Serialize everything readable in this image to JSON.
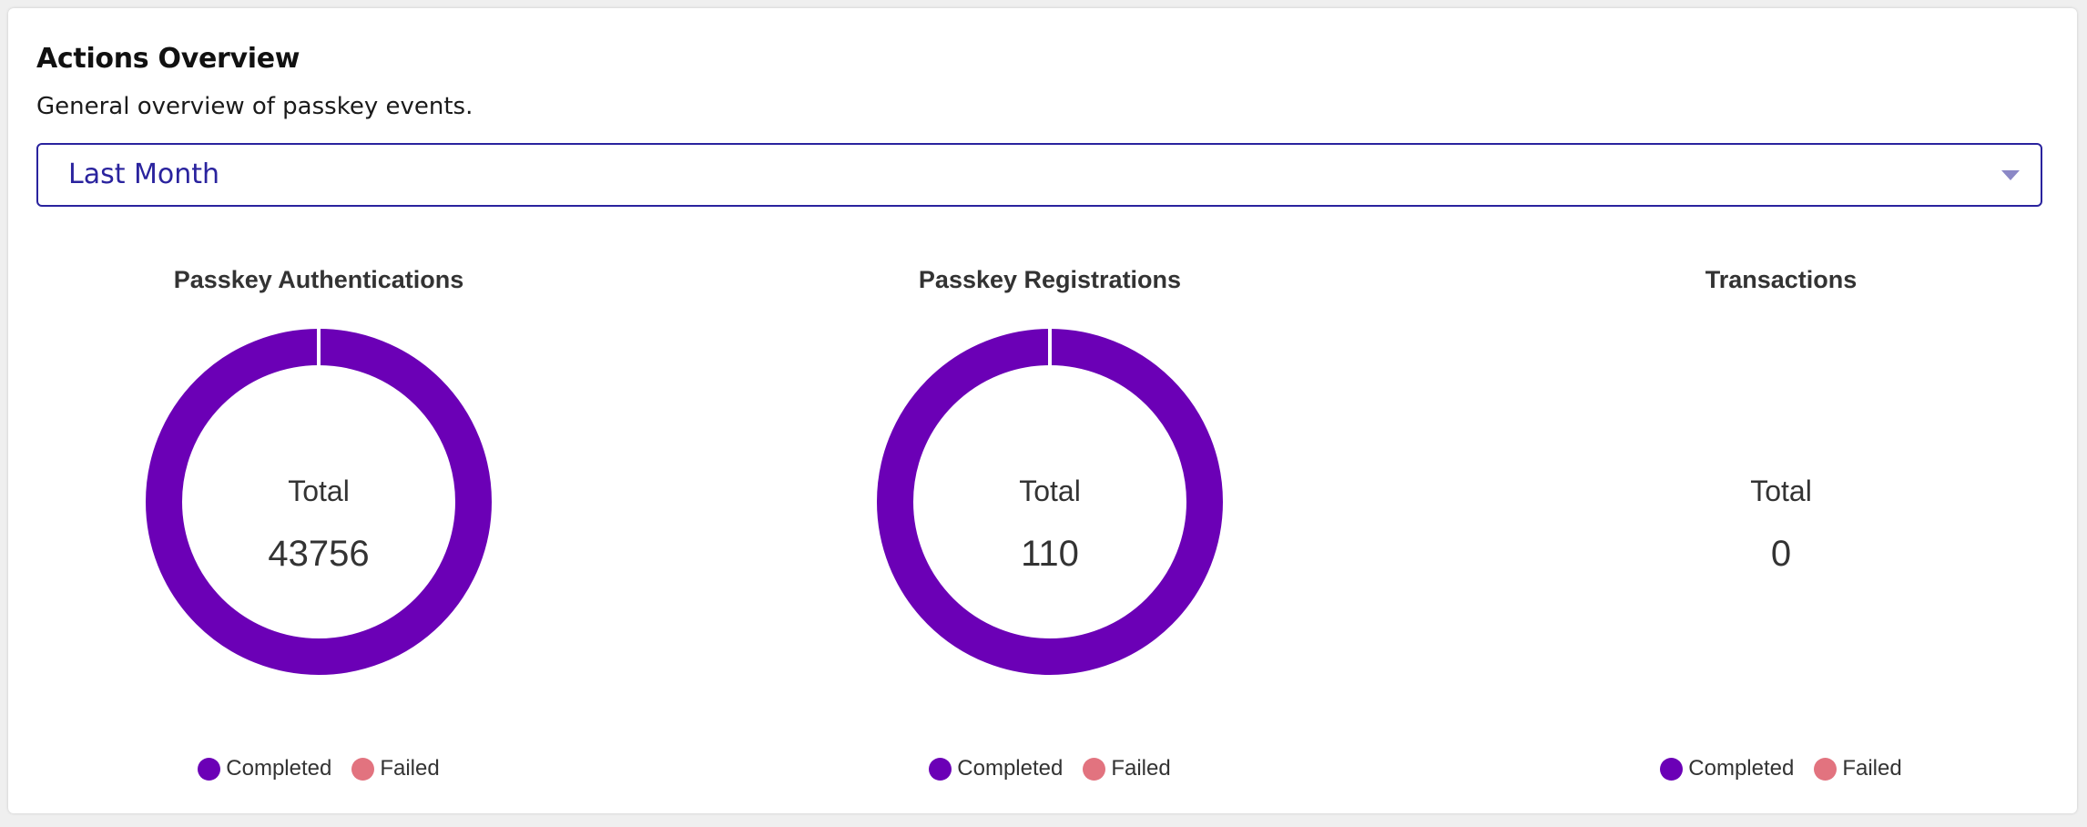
{
  "header": {
    "title": "Actions Overview",
    "subtitle": "General overview of passkey events."
  },
  "filter": {
    "selected": "Last Month",
    "caret_icon": "triangle-down-icon"
  },
  "colors": {
    "completed": "#6b00b6",
    "failed": "#e2737f",
    "accent": "#2a239e"
  },
  "charts": [
    {
      "title": "Passkey Authentications",
      "center_label": "Total",
      "total": "43756",
      "legend": [
        "Completed",
        "Failed"
      ]
    },
    {
      "title": "Passkey Registrations",
      "center_label": "Total",
      "total": "110",
      "legend": [
        "Completed",
        "Failed"
      ]
    },
    {
      "title": "Transactions",
      "center_label": "Total",
      "total": "0",
      "legend": [
        "Completed",
        "Failed"
      ]
    }
  ],
  "chart_data": [
    {
      "type": "pie",
      "title": "Passkey Authentications",
      "categories": [
        "Completed",
        "Failed"
      ],
      "values": [
        43756,
        0
      ]
    },
    {
      "type": "pie",
      "title": "Passkey Registrations",
      "categories": [
        "Completed",
        "Failed"
      ],
      "values": [
        110,
        0
      ]
    },
    {
      "type": "pie",
      "title": "Transactions",
      "categories": [
        "Completed",
        "Failed"
      ],
      "values": [
        0,
        0
      ]
    }
  ]
}
